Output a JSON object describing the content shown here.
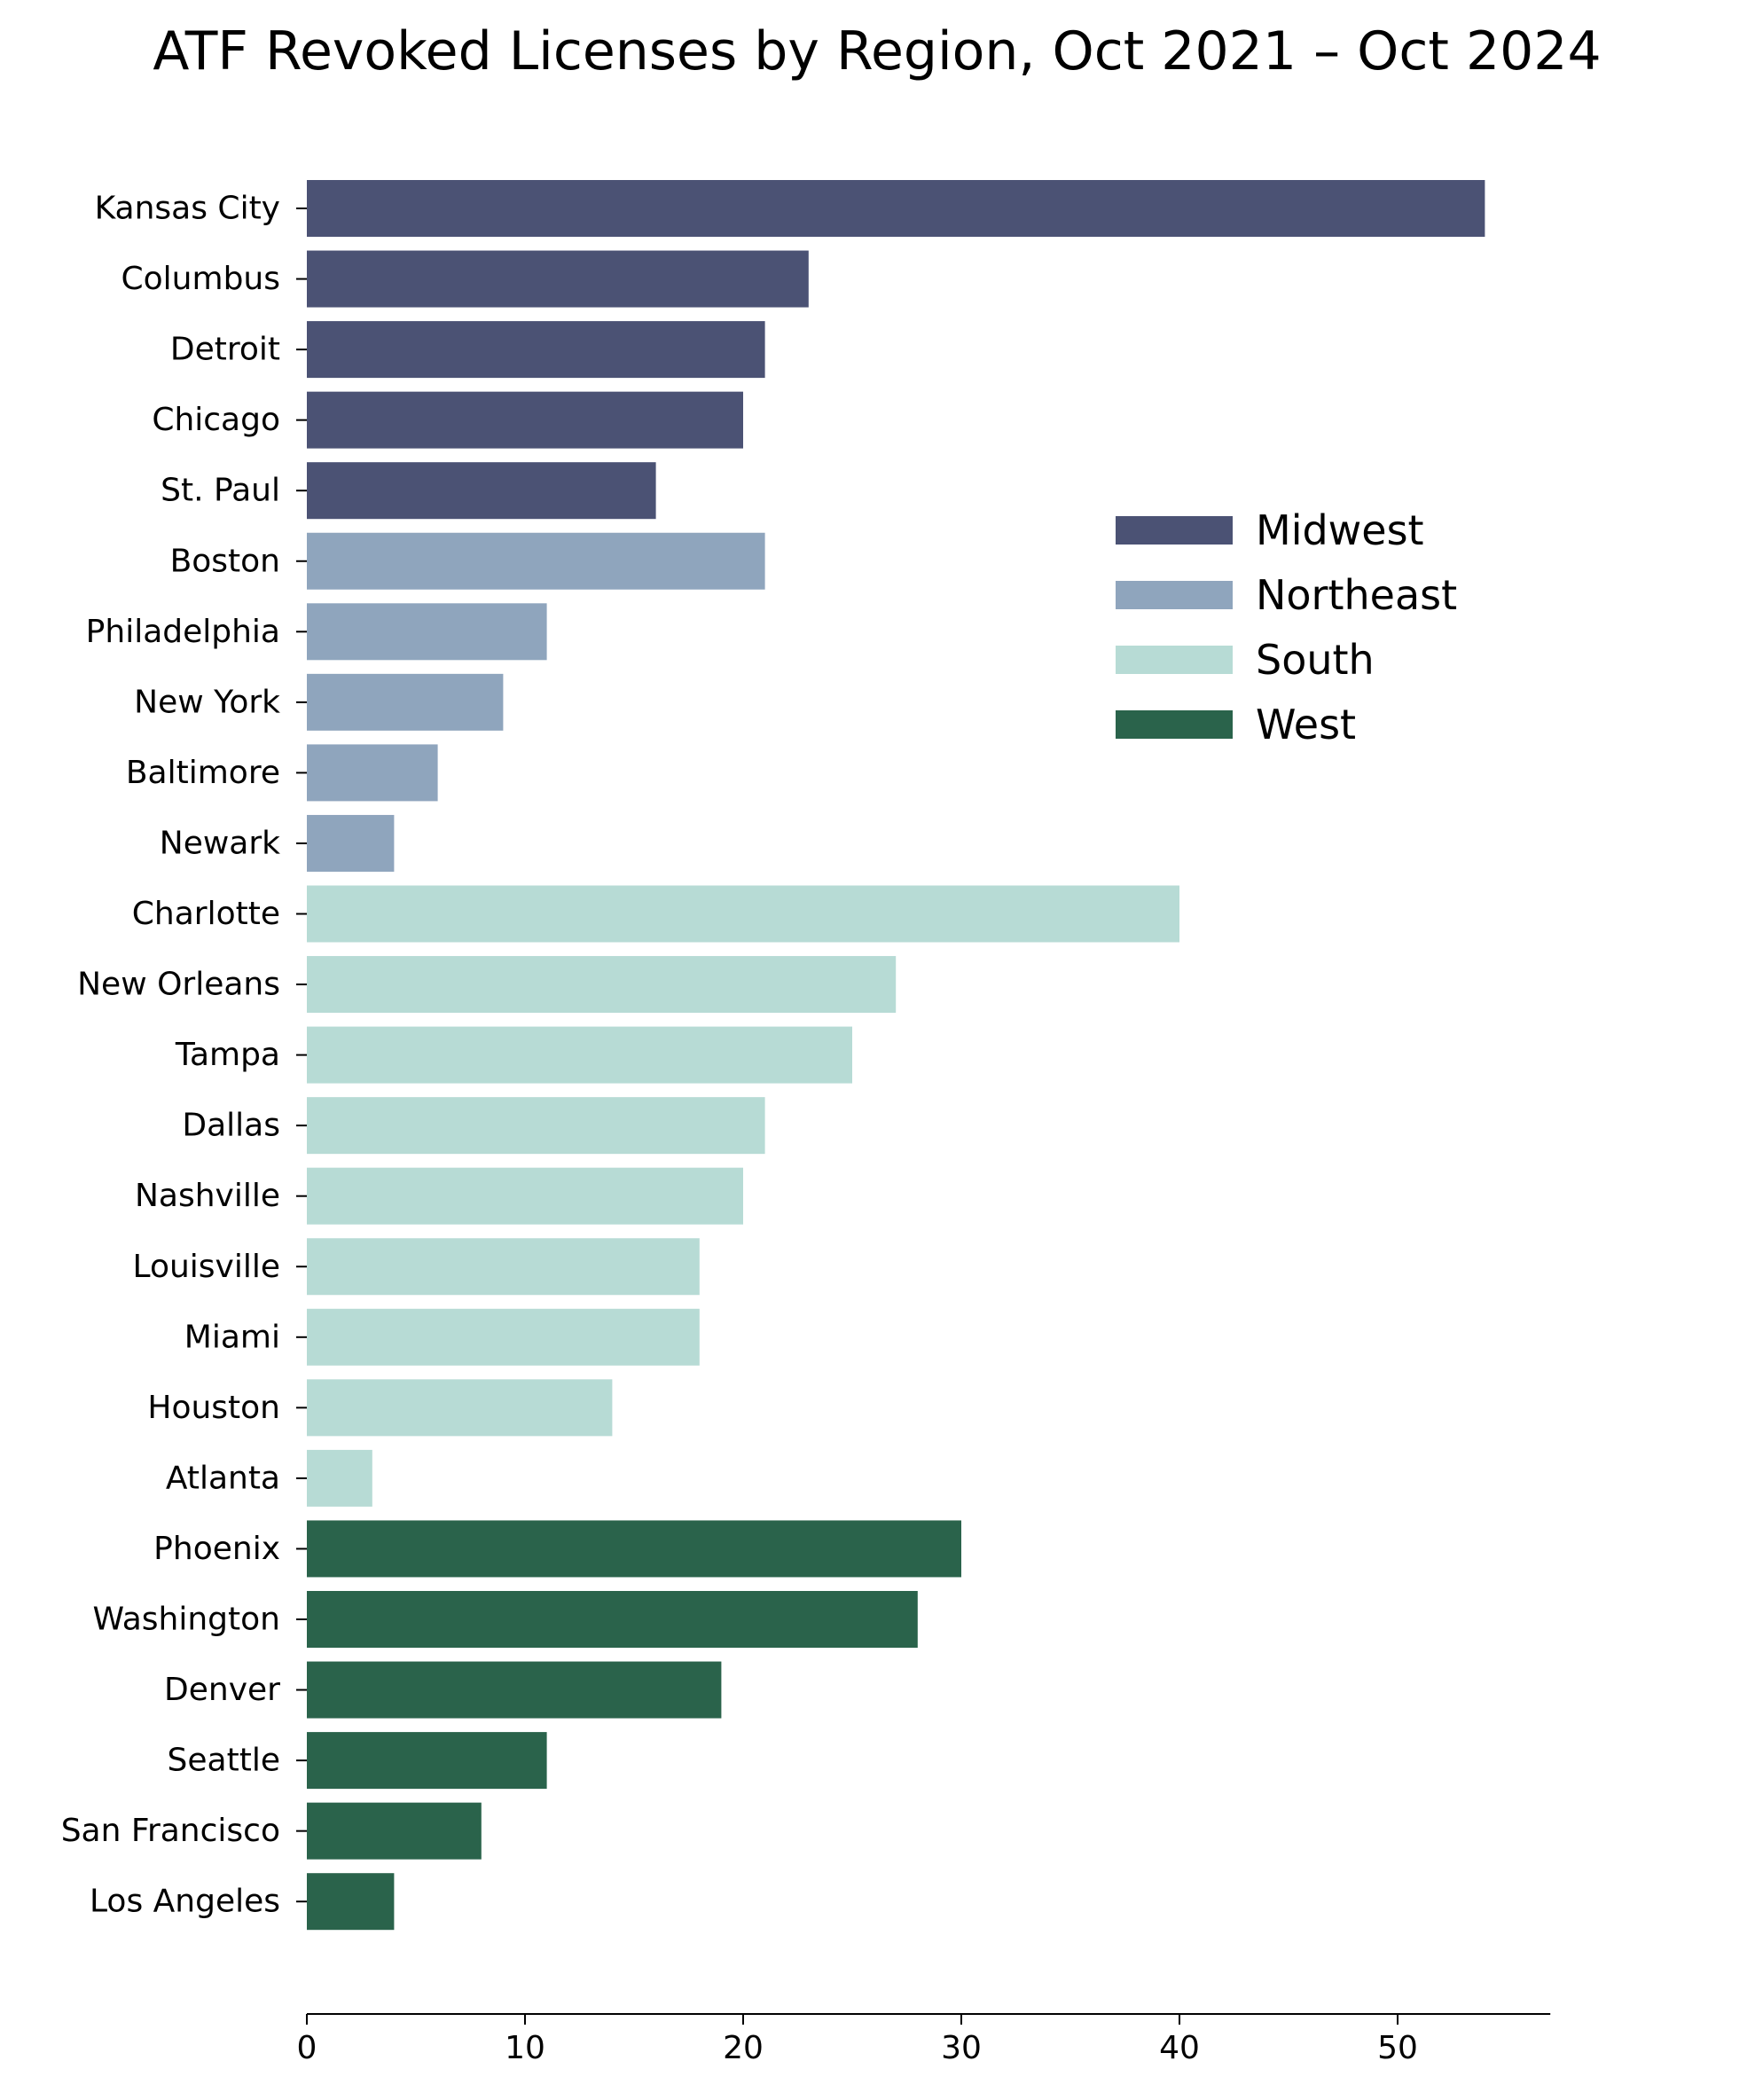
{
  "chart_data": {
    "type": "bar",
    "orientation": "horizontal",
    "title": "ATF Revoked Licenses by Region, Oct 2021 – Oct 2024",
    "xlabel": "",
    "ylabel": "",
    "xlim": [
      0,
      57
    ],
    "xticks": [
      0,
      10,
      20,
      30,
      40,
      50
    ],
    "grid": false,
    "legend_position": "right",
    "categories": [
      "Kansas City",
      "Columbus",
      "Detroit",
      "Chicago",
      "St. Paul",
      "Boston",
      "Philadelphia",
      "New York",
      "Baltimore",
      "Newark",
      "Charlotte",
      "New Orleans",
      "Tampa",
      "Dallas",
      "Nashville",
      "Louisville",
      "Miami",
      "Houston",
      "Atlanta",
      "Phoenix",
      "Washington",
      "Denver",
      "Seattle",
      "San Francisco",
      "Los Angeles"
    ],
    "values": [
      54,
      23,
      21,
      20,
      16,
      21,
      11,
      9,
      6,
      4,
      40,
      27,
      25,
      21,
      20,
      18,
      18,
      14,
      3,
      30,
      28,
      19,
      11,
      8,
      4
    ],
    "regions": [
      "Midwest",
      "Midwest",
      "Midwest",
      "Midwest",
      "Midwest",
      "Northeast",
      "Northeast",
      "Northeast",
      "Northeast",
      "Northeast",
      "South",
      "South",
      "South",
      "South",
      "South",
      "South",
      "South",
      "South",
      "South",
      "West",
      "West",
      "West",
      "West",
      "West",
      "West"
    ],
    "series": [
      {
        "name": "Midwest",
        "color": "#4b5274"
      },
      {
        "name": "Northeast",
        "color": "#8fa5bd"
      },
      {
        "name": "South",
        "color": "#b7dbd5"
      },
      {
        "name": "West",
        "color": "#2a634b"
      }
    ]
  }
}
